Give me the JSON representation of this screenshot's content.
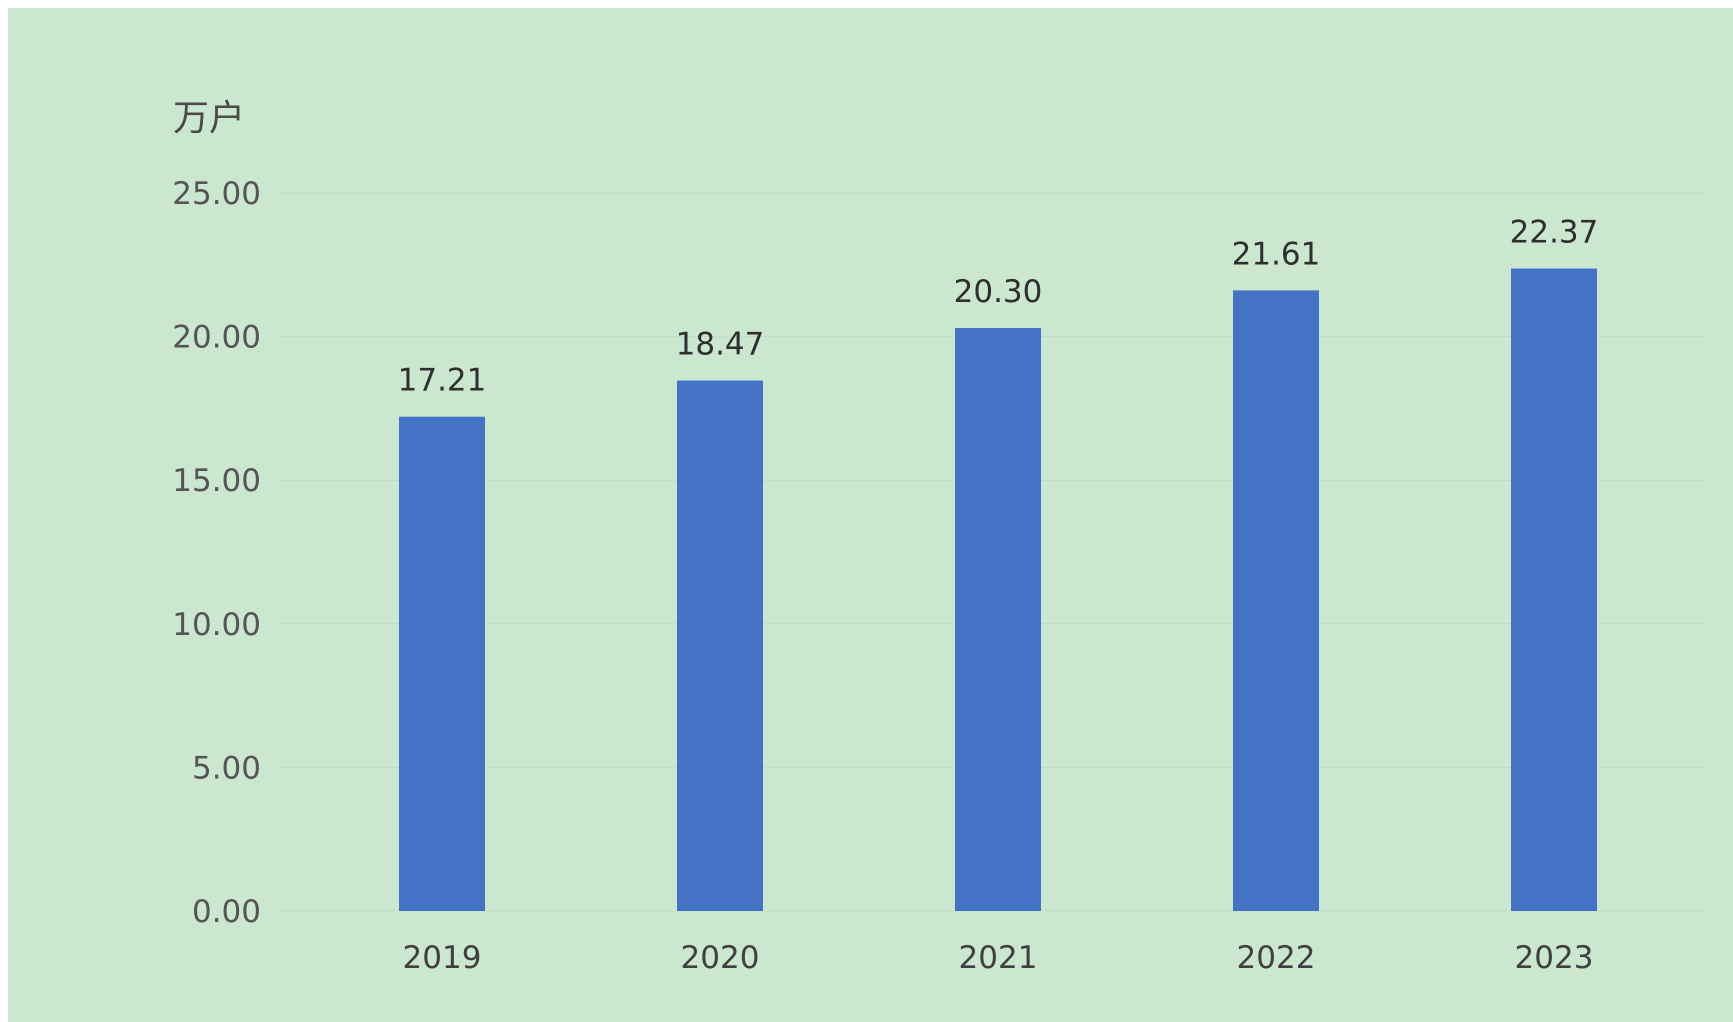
{
  "chart_data": {
    "type": "bar",
    "title": "",
    "xlabel": "",
    "ylabel": "万户",
    "categories": [
      "2019",
      "2020",
      "2021",
      "2022",
      "2023"
    ],
    "series": [
      {
        "values": [
          17.21,
          18.47,
          20.3,
          21.61,
          22.37
        ],
        "color": "#4472c4"
      }
    ],
    "data_labels": [
      "17.21",
      "18.47",
      "20.30",
      "21.61",
      "22.37"
    ],
    "ylim": [
      0,
      25
    ],
    "yticks": [
      0,
      5,
      10,
      15,
      20,
      25
    ],
    "ytick_labels": [
      "0.00",
      "5.00",
      "10.00",
      "15.00",
      "20.00",
      "25.00"
    ],
    "grid": true,
    "legend": "none",
    "background_color": "#cce7d0"
  }
}
